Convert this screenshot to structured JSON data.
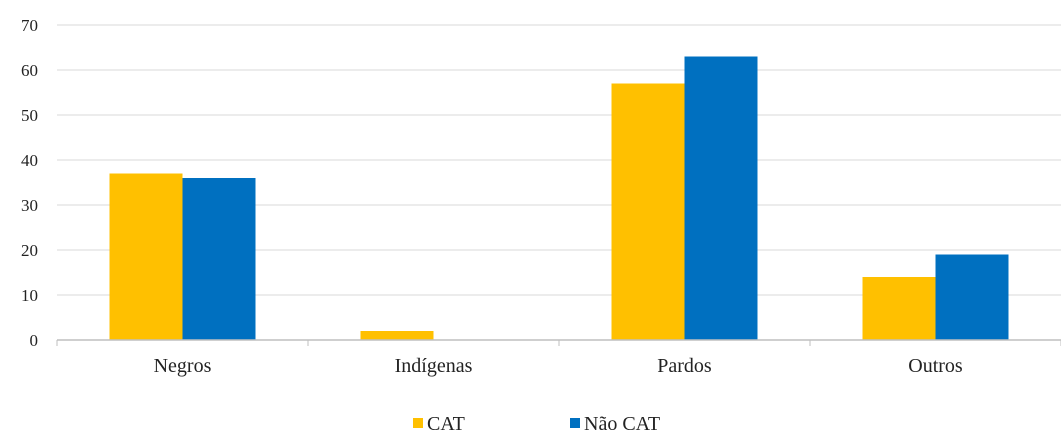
{
  "chart_data": {
    "type": "bar",
    "categories": [
      "Negros",
      "Indígenas",
      "Pardos",
      "Outros"
    ],
    "series": [
      {
        "name": "CAT",
        "values": [
          37,
          2,
          57,
          14
        ],
        "color": "#FFC000"
      },
      {
        "name": "Não CAT",
        "values": [
          36,
          0,
          63,
          19
        ],
        "color": "#0070C0"
      }
    ],
    "y_ticks": [
      "0",
      "10",
      "20",
      "30",
      "40",
      "50",
      "60",
      "70"
    ],
    "ylim": [
      0,
      70
    ],
    "grid": true,
    "legend_position": "bottom-center"
  }
}
